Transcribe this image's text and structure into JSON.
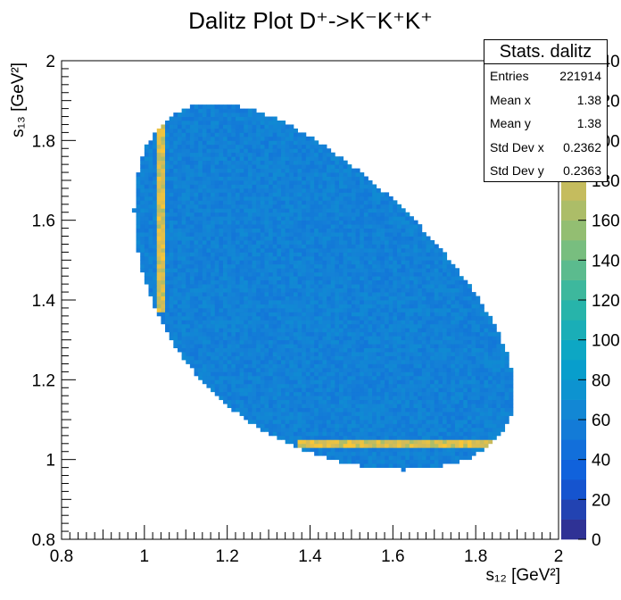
{
  "chart_data": {
    "type": "heatmap",
    "title": "Dalitz Plot D⁺->K⁻K⁺K⁺",
    "xlabel": "s₁₂ [GeV²]",
    "ylabel": "s₁₃ [GeV²]",
    "xlim": [
      0.8,
      2.0
    ],
    "ylim": [
      0.8,
      2.0
    ],
    "zlim": [
      0,
      240
    ],
    "x_ticks": [
      "0.8",
      "1",
      "1.2",
      "1.4",
      "1.6",
      "1.8",
      "2"
    ],
    "y_ticks": [
      "0.8",
      "1",
      "1.2",
      "1.4",
      "1.6",
      "1.8",
      "2"
    ],
    "z_ticks": [
      "0",
      "20",
      "40",
      "60",
      "80",
      "100",
      "120",
      "140",
      "160",
      "180",
      "200",
      "220",
      "240"
    ],
    "bins": {
      "nx": 120,
      "ny": 120
    },
    "kinematic_region": {
      "m_parent": 1.8696,
      "m_daughter": 0.4937
    },
    "background_level": 60,
    "resonance_bands": [
      {
        "axis": "x",
        "center": 1.039,
        "level": 180,
        "along_range": [
          1.37,
          1.85
        ]
      },
      {
        "axis": "y",
        "center": 1.039,
        "level": 180,
        "along_range": [
          1.37,
          1.85
        ]
      }
    ],
    "colormap": "parula",
    "grid": false
  },
  "stats": {
    "title": "Stats. dalitz",
    "rows": [
      {
        "label": "Entries",
        "value": "221914"
      },
      {
        "label": "Mean x",
        "value": "1.38"
      },
      {
        "label": "Mean y",
        "value": "1.38"
      },
      {
        "label": "Std Dev x",
        "value": "0.2362"
      },
      {
        "label": "Std Dev y",
        "value": "0.2363"
      }
    ]
  }
}
